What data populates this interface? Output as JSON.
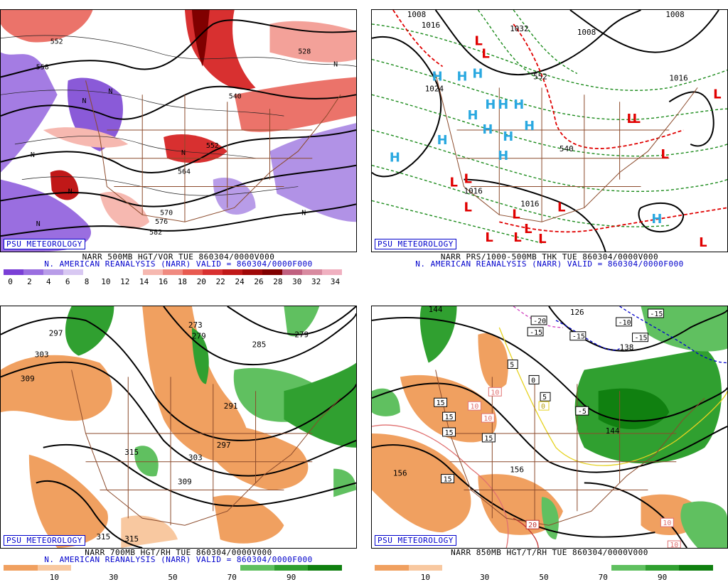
{
  "badge_text": "PSU METEOROLOGY",
  "panels": [
    {
      "caption_line1": "NARR 500MB HGT/VOR TUE 860304/0000V000",
      "caption_line2": "N. AMERICAN REANALYSIS (NARR) VALID = 860304/0000F000",
      "colorbar_ticks": [
        "0",
        "2",
        "4",
        "6",
        "8",
        "10",
        "12",
        "14",
        "16",
        "18",
        "20",
        "22",
        "24",
        "26",
        "28",
        "30",
        "32",
        "34"
      ],
      "colorbar_colors": [
        "#7a3fd6",
        "#9a6ee0",
        "#b89ce8",
        "#d8c8f2",
        "#ffffff",
        "#ffffff",
        "#ffffff",
        "#f6b8b0",
        "#f08a80",
        "#e85a50",
        "#d83030",
        "#c01818",
        "#a00808",
        "#800000",
        "#c06080",
        "#d88aa0",
        "#f0b0c0"
      ],
      "contour_labels": [
        "552",
        "558",
        "528",
        "540",
        "552",
        "564",
        "570",
        "576",
        "582"
      ],
      "symbols": [
        "N",
        "N",
        "N",
        "N",
        "N",
        "N",
        "N",
        "N"
      ]
    },
    {
      "caption_line1": "NARR PRS/1000-500MB THK TUE 860304/0000V000",
      "caption_line2": "N. AMERICAN REANALYSIS (NARR) VALID = 860304/0000F000",
      "contour_labels": [
        "1008",
        "1016",
        "1024",
        "1016",
        "1016",
        "1016",
        "1008",
        "1032",
        "1008",
        "540",
        "552"
      ],
      "highs": [
        "H",
        "H",
        "H",
        "H",
        "H",
        "H",
        "H",
        "H",
        "H",
        "H",
        "H",
        "H",
        "H",
        "H"
      ],
      "lows": [
        "L",
        "L",
        "L",
        "L",
        "L",
        "L",
        "L",
        "L",
        "L",
        "L",
        "L",
        "L",
        "L",
        "L",
        "L",
        "L"
      ]
    },
    {
      "caption_line1": "NARR 700MB HGT/RH TUE 860304/0000V000",
      "caption_line2": "N. AMERICAN REANALYSIS (NARR) VALID = 860304/0000F000",
      "colorbar_ticks": [
        "10",
        "30",
        "50",
        "70",
        "90"
      ],
      "colorbar_colors": [
        "#f0a060",
        "#f8c8a0",
        "#ffffff",
        "#ffffff",
        "#ffffff",
        "#ffffff",
        "#ffffff",
        "#60c060",
        "#30a030",
        "#108010"
      ],
      "contour_labels": [
        "297",
        "303",
        "309",
        "315",
        "315",
        "315",
        "309",
        "303",
        "297",
        "291",
        "285",
        "279",
        "279",
        "273"
      ]
    },
    {
      "caption_line1": "NARR 850MB HGT/T/RH TUE 860304/0000V000",
      "caption_line2": "",
      "colorbar_ticks": [
        "10",
        "30",
        "50",
        "70",
        "90"
      ],
      "colorbar_colors": [
        "#f0a060",
        "#f8c8a0",
        "#ffffff",
        "#ffffff",
        "#ffffff",
        "#ffffff",
        "#ffffff",
        "#60c060",
        "#30a030",
        "#108010"
      ],
      "contour_labels": [
        "156",
        "156",
        "144",
        "126",
        "138",
        "144"
      ],
      "temp_boxes": [
        "-20",
        "-15",
        "-15",
        "-10",
        "-15",
        "-15",
        "5",
        "0",
        "5",
        "-5",
        "15",
        "15",
        "15",
        "15",
        "15",
        "10",
        "10",
        "10",
        "20",
        "10",
        "10",
        "0"
      ]
    }
  ]
}
